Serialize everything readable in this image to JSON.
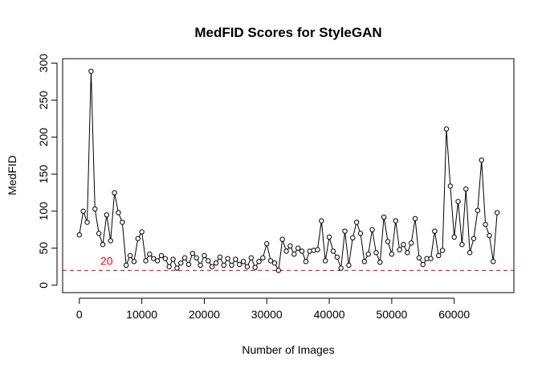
{
  "chart_data": {
    "type": "line",
    "title": "MedFID Scores for StyleGAN",
    "x_label": "Number of Images",
    "y_label": "MedFID",
    "x": [
      0,
      625,
      1250,
      1875,
      2500,
      3125,
      3750,
      4375,
      5000,
      5625,
      6250,
      6875,
      7500,
      8125,
      8750,
      9375,
      10000,
      10625,
      11250,
      11875,
      12500,
      13125,
      13750,
      14375,
      15000,
      15625,
      16250,
      16875,
      17500,
      18125,
      18750,
      19375,
      20000,
      20625,
      21250,
      21875,
      22500,
      23125,
      23750,
      24375,
      25000,
      25625,
      26250,
      26875,
      27500,
      28125,
      28750,
      29375,
      30000,
      30625,
      31250,
      31875,
      32500,
      33125,
      33750,
      34375,
      35000,
      35625,
      36250,
      36875,
      37500,
      38125,
      38750,
      39375,
      40000,
      40625,
      41250,
      41875,
      42500,
      43125,
      43750,
      44375,
      45000,
      45625,
      46250,
      46875,
      47500,
      48125,
      48750,
      49375,
      50000,
      50625,
      51250,
      51875,
      52500,
      53125,
      53750,
      54375,
      55000,
      55625,
      56250,
      56875,
      57500,
      58125,
      58750,
      59375,
      60000,
      60625,
      61250,
      61875,
      62500,
      63125,
      63750,
      64375,
      65000,
      65625,
      66250,
      66875
    ],
    "series": [
      {
        "color": "#000000",
        "values": [
          68,
          100,
          85,
          289,
          103,
          70,
          55,
          95,
          60,
          125,
          98,
          85,
          27,
          40,
          32,
          63,
          72,
          33,
          42,
          36,
          33,
          40,
          36,
          25,
          35,
          23,
          30,
          37,
          28,
          43,
          37,
          27,
          40,
          33,
          25,
          30,
          38,
          27,
          36,
          27,
          35,
          28,
          32,
          25,
          37,
          24,
          32,
          37,
          56,
          33,
          30,
          20,
          62,
          46,
          53,
          42,
          50,
          46,
          32,
          46,
          47,
          48,
          87,
          33,
          65,
          46,
          38,
          23,
          73,
          27,
          64,
          85,
          70,
          32,
          42,
          75,
          44,
          31,
          92,
          59,
          42,
          87,
          48,
          55,
          44,
          57,
          90,
          37,
          28,
          36,
          36,
          73,
          40,
          47,
          211,
          134,
          65,
          113,
          55,
          130,
          44,
          63,
          101,
          169,
          82,
          67,
          32,
          98
        ]
      }
    ],
    "reference_line": {
      "value": 20,
      "label": "20",
      "color": "#ff0000"
    },
    "xlim": [
      -2675,
      69550
    ],
    "ylim": [
      -10,
      306
    ],
    "xticks": [
      0,
      10000,
      20000,
      30000,
      40000,
      50000,
      60000
    ],
    "yticks": [
      0,
      50,
      100,
      150,
      200,
      250,
      300
    ]
  }
}
